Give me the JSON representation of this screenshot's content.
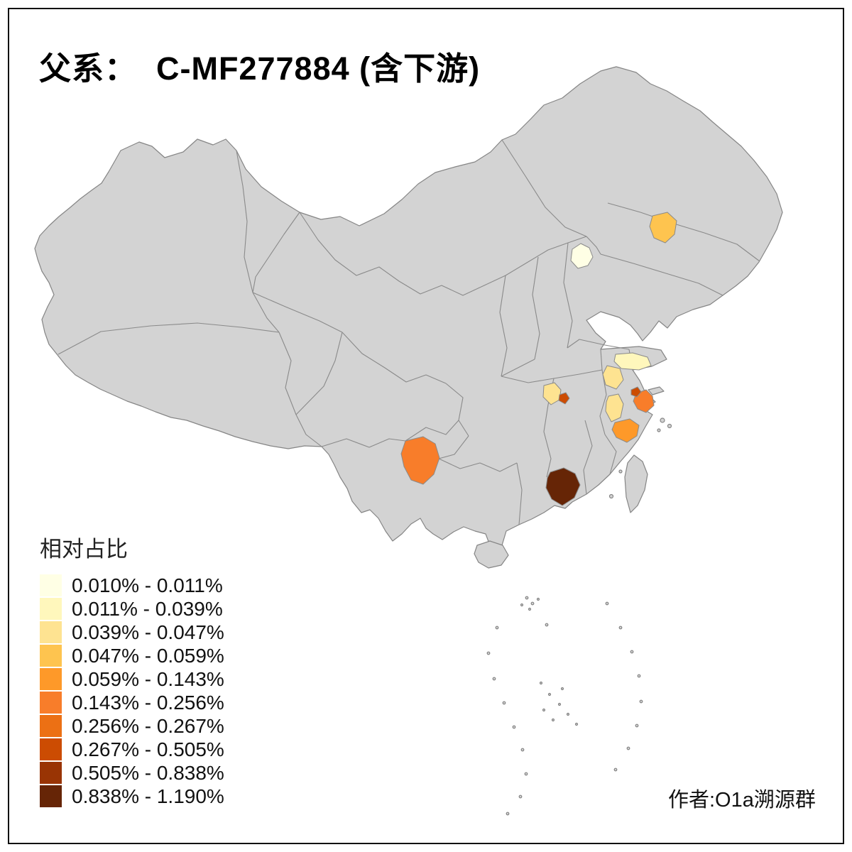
{
  "title": "父系：  C-MF277884 (含下游)",
  "attribution": "作者:O1a溯源群",
  "legend": {
    "title": "相对占比",
    "items": [
      {
        "label": "0.010% - 0.011%",
        "color": "#FFFFE5"
      },
      {
        "label": "0.011% - 0.039%",
        "color": "#FFF7BC"
      },
      {
        "label": "0.039% - 0.047%",
        "color": "#FEE391"
      },
      {
        "label": "0.047% - 0.059%",
        "color": "#FEC44F"
      },
      {
        "label": "0.059% - 0.143%",
        "color": "#FE9929"
      },
      {
        "label": "0.143% - 0.256%",
        "color": "#F87D2A"
      },
      {
        "label": "0.256% - 0.267%",
        "color": "#EC7014"
      },
      {
        "label": "0.267% - 0.505%",
        "color": "#CC4C02"
      },
      {
        "label": "0.505% - 0.838%",
        "color": "#993404"
      },
      {
        "label": "0.838% - 1.190%",
        "color": "#662506"
      }
    ]
  },
  "map": {
    "base_fill": "#D3D3D3",
    "border_color": "#8A8A8A",
    "sea_color": "#FFFFFF",
    "regions": [
      {
        "id": "beijing",
        "bin": "0.010% - 0.011%",
        "color": "#FFFFE5"
      },
      {
        "id": "central-jilin",
        "bin": "0.047% - 0.059%",
        "color": "#FEC44F"
      },
      {
        "id": "north-jiangsu",
        "bin": "0.011% - 0.039%",
        "color": "#FFF7BC"
      },
      {
        "id": "central-jiangsu",
        "bin": "0.039% - 0.047%",
        "color": "#FEE391"
      },
      {
        "id": "east-hubei",
        "bin": "0.039% - 0.047%",
        "color": "#FEE391"
      },
      {
        "id": "east-hubei-city",
        "bin": "0.267% - 0.505%",
        "color": "#CC4C02"
      },
      {
        "id": "south-anhui",
        "bin": "0.039% - 0.047%",
        "color": "#FEE391"
      },
      {
        "id": "near-shanghai-city",
        "bin": "0.267% - 0.505%",
        "color": "#CC4C02"
      },
      {
        "id": "shanghai",
        "bin": "0.143% - 0.256%",
        "color": "#F87D2A"
      },
      {
        "id": "east-zhejiang",
        "bin": "0.059% - 0.143%",
        "color": "#FE9929"
      },
      {
        "id": "central-yunnan",
        "bin": "0.143% - 0.256%",
        "color": "#F87D2A"
      },
      {
        "id": "east-guangdong",
        "bin": "0.838% - 1.190%",
        "color": "#662506"
      }
    ]
  },
  "chart_data": {
    "type": "choropleth",
    "title": "父系：  C-MF277884 (含下游)",
    "legend_title": "相对占比",
    "bins": [
      "0.010% - 0.011%",
      "0.011% - 0.039%",
      "0.039% - 0.047%",
      "0.047% - 0.059%",
      "0.059% - 0.143%",
      "0.143% - 0.256%",
      "0.256% - 0.267%",
      "0.267% - 0.505%",
      "0.505% - 0.838%",
      "0.838% - 1.190%"
    ],
    "colored_regions": [
      {
        "region": "beijing",
        "bin": "0.010% - 0.011%"
      },
      {
        "region": "central-jilin",
        "bin": "0.047% - 0.059%"
      },
      {
        "region": "north-jiangsu",
        "bin": "0.011% - 0.039%"
      },
      {
        "region": "central-jiangsu",
        "bin": "0.039% - 0.047%"
      },
      {
        "region": "east-hubei",
        "bin": "0.039% - 0.047%"
      },
      {
        "region": "east-hubei-city",
        "bin": "0.267% - 0.505%"
      },
      {
        "region": "south-anhui",
        "bin": "0.039% - 0.047%"
      },
      {
        "region": "near-shanghai-city",
        "bin": "0.267% - 0.505%"
      },
      {
        "region": "shanghai",
        "bin": "0.143% - 0.256%"
      },
      {
        "region": "east-zhejiang",
        "bin": "0.059% - 0.143%"
      },
      {
        "region": "central-yunnan",
        "bin": "0.143% - 0.256%"
      },
      {
        "region": "east-guangdong",
        "bin": "0.838% - 1.190%"
      }
    ],
    "base_region_note": "all other provinces shown in neutral gray (no data)"
  }
}
